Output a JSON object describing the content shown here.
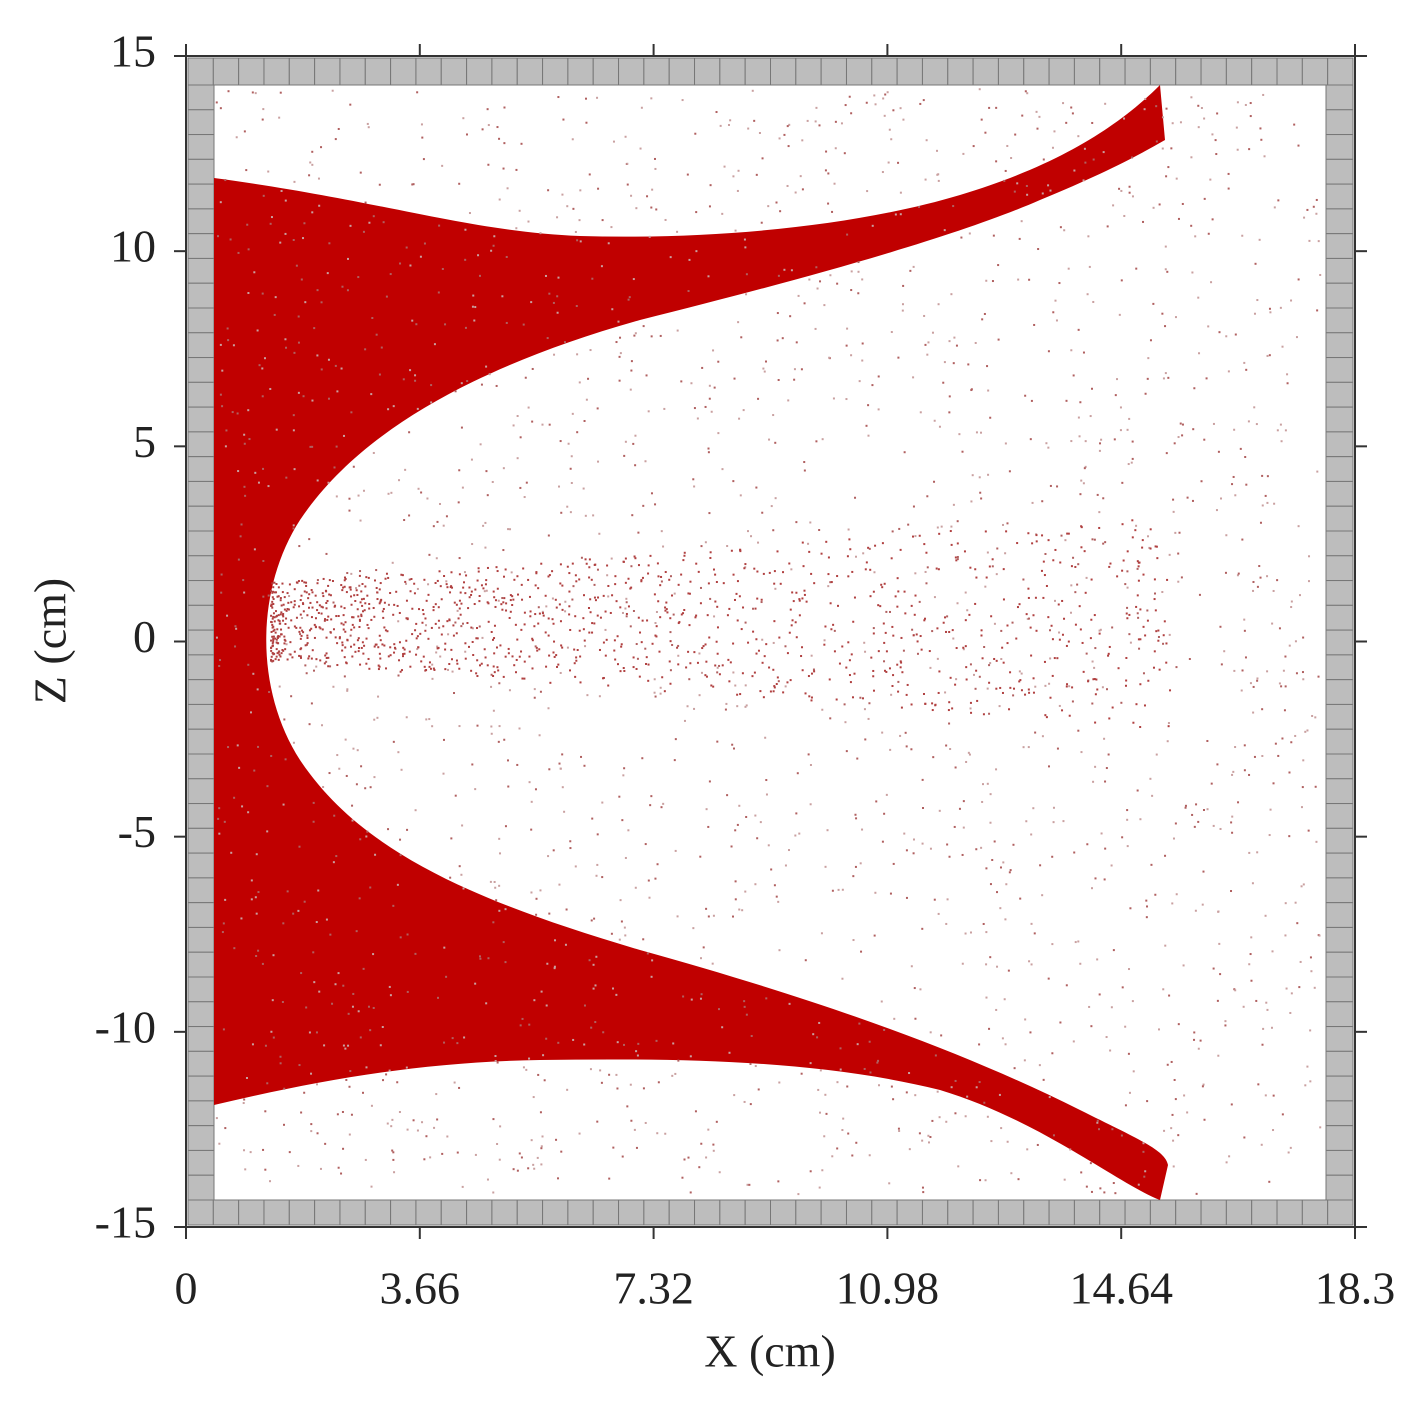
{
  "chart_data": {
    "type": "scatter",
    "xlabel": "X (cm)",
    "ylabel": "Z (cm)",
    "xlim": [
      0,
      18.3
    ],
    "xticks": [
      0,
      3.66,
      7.32,
      10.98,
      14.64,
      18.3
    ],
    "ylim": [
      -15,
      15
    ],
    "yticks": [
      -15,
      -10,
      -5,
      0,
      5,
      10,
      15
    ],
    "color": "#c00000"
  }
}
